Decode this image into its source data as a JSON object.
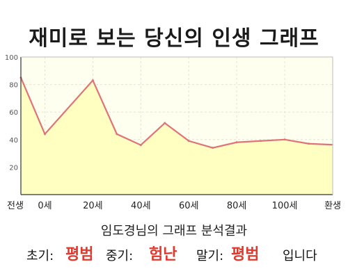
{
  "page": {
    "title": "재미로 보는 당신의 인생 그래프"
  },
  "chart_data": {
    "type": "area",
    "x": [
      -10,
      0,
      20,
      30,
      40,
      50,
      60,
      70,
      80,
      90,
      100,
      110
    ],
    "y": [
      85,
      44,
      83,
      44,
      36,
      52,
      39,
      34,
      38,
      39,
      40,
      37
    ],
    "x_ticks": [
      {
        "x": -10,
        "label": "전생"
      },
      {
        "x": 0,
        "label": "0세"
      },
      {
        "x": 20,
        "label": "20세"
      },
      {
        "x": 40,
        "label": "40세"
      },
      {
        "x": 60,
        "label": "60세"
      },
      {
        "x": 80,
        "label": "80세"
      },
      {
        "x": 100,
        "label": "100세"
      },
      {
        "x": 120,
        "label": "환생"
      }
    ],
    "y_ticks": [
      20,
      40,
      60,
      80,
      100
    ],
    "xlim": [
      -10,
      120
    ],
    "ylim": [
      0,
      100
    ],
    "grid": true,
    "colors": {
      "line": "#e0727a",
      "fill": "#ffffc2",
      "background": "#fffff0",
      "grid": "#e4e4d0"
    }
  },
  "summary": {
    "text": "임도경님의 그래프 분석결과"
  },
  "result": {
    "early_label": "초기:",
    "early_value": "평범",
    "mid_label": "중기:",
    "mid_value": "험난",
    "late_label": "말기:",
    "late_value": "평범",
    "ending": "입니다"
  }
}
